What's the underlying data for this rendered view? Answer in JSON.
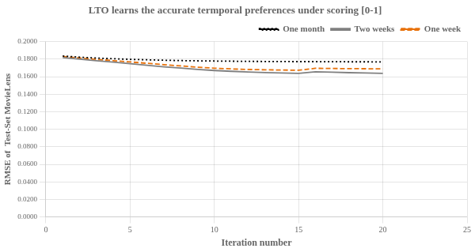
{
  "chart_data": {
    "type": "line",
    "title": "LTO learns the accurate termporal preferences under scoring [0-1]",
    "x_label": "Iteration number",
    "y_label": "RMSE of  Test-Set MovieLens",
    "x": [
      1,
      2,
      3,
      4,
      5,
      6,
      7,
      8,
      9,
      10,
      11,
      12,
      13,
      14,
      15,
      16,
      17,
      18,
      19,
      20
    ],
    "series": [
      {
        "name": "One month",
        "color": "#000000",
        "line_style": "dotted",
        "values": [
          0.1835,
          0.1822,
          0.1812,
          0.1804,
          0.1797,
          0.1792,
          0.1787,
          0.1783,
          0.178,
          0.1778,
          0.1776,
          0.1774,
          0.1773,
          0.1772,
          0.1771,
          0.1771,
          0.177,
          0.1769,
          0.1769,
          0.1768
        ]
      },
      {
        "name": "Two weeks",
        "color": "#808080",
        "line_style": "solid",
        "values": [
          0.1818,
          0.18,
          0.1782,
          0.1765,
          0.1748,
          0.173,
          0.1712,
          0.1698,
          0.1682,
          0.167,
          0.1661,
          0.1653,
          0.1646,
          0.1641,
          0.1638,
          0.1655,
          0.165,
          0.1645,
          0.1642,
          0.1638
        ]
      },
      {
        "name": "One week",
        "color": "#E8720C",
        "line_style": "dashed",
        "values": [
          0.183,
          0.1812,
          0.1797,
          0.1782,
          0.1768,
          0.1752,
          0.1737,
          0.1722,
          0.1708,
          0.1696,
          0.1688,
          0.1682,
          0.1678,
          0.1675,
          0.1673,
          0.1695,
          0.1693,
          0.1691,
          0.169,
          0.1688
        ]
      }
    ],
    "xlim": [
      0,
      25
    ],
    "xticks": [
      0,
      5,
      10,
      15,
      20,
      25
    ],
    "ylim": [
      0.0,
      0.2
    ],
    "yticks": [
      {
        "value": 0.0,
        "label": "0.0000"
      },
      {
        "value": 0.02,
        "label": "0.0200"
      },
      {
        "value": 0.04,
        "label": "0.0400"
      },
      {
        "value": 0.06,
        "label": "0.0600"
      },
      {
        "value": 0.08,
        "label": "0.0800"
      },
      {
        "value": 0.1,
        "label": "0.1000"
      },
      {
        "value": 0.12,
        "label": "0.1200"
      },
      {
        "value": 0.14,
        "label": "0.1400"
      },
      {
        "value": 0.16,
        "label": "0.1600"
      },
      {
        "value": 0.18,
        "label": "0.1800"
      },
      {
        "value": 0.2,
        "label": "0.2000"
      }
    ],
    "grid": true,
    "legend": "upper right"
  }
}
